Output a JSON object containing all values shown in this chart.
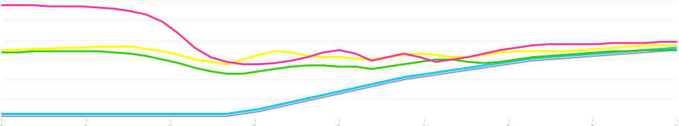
{
  "background_color": "#ffffff",
  "grid_color": "#e5e5e5",
  "series": {
    "pink": {
      "color": "#ff3399",
      "linewidth": 2.0,
      "values": [
        96,
        96,
        96,
        95,
        95,
        95,
        94,
        93,
        91,
        88,
        82,
        72,
        60,
        52,
        48,
        46,
        46,
        47,
        49,
        52,
        56,
        58,
        55,
        49,
        52,
        55,
        52,
        48,
        50,
        52,
        55,
        58,
        60,
        62,
        63,
        63,
        63,
        63,
        64,
        64,
        64,
        65,
        65
      ]
    },
    "yellow": {
      "color": "#ffff00",
      "linewidth": 2.2,
      "values": [
        58,
        58,
        59,
        59,
        60,
        60,
        61,
        61,
        61,
        59,
        57,
        54,
        50,
        48,
        46,
        50,
        54,
        57,
        56,
        53,
        52,
        52,
        51,
        50,
        52,
        54,
        55,
        54,
        52,
        52,
        54,
        56,
        57,
        57,
        57,
        57,
        58,
        59,
        60,
        61,
        62,
        62,
        62
      ]
    },
    "green": {
      "color": "#33cc00",
      "linewidth": 2.0,
      "values": [
        56,
        56,
        57,
        57,
        57,
        57,
        57,
        56,
        55,
        53,
        50,
        47,
        43,
        40,
        38,
        38,
        40,
        42,
        44,
        45,
        45,
        44,
        44,
        42,
        44,
        46,
        48,
        50,
        50,
        48,
        47,
        48,
        50,
        52,
        53,
        54,
        55,
        56,
        57,
        57,
        58,
        58,
        58
      ]
    },
    "blue": {
      "color": "#00ccff",
      "linewidth": 2.2,
      "values": [
        4,
        4,
        4,
        4,
        4,
        4,
        4,
        4,
        4,
        4,
        4,
        4,
        4,
        4,
        4,
        6,
        8,
        11,
        14,
        17,
        20,
        23,
        26,
        29,
        32,
        35,
        37,
        39,
        41,
        43,
        45,
        47,
        49,
        51,
        52,
        53,
        54,
        55,
        56,
        57,
        58,
        59,
        60
      ]
    },
    "gray": {
      "color": "#9999bb",
      "linewidth": 1.6,
      "values": [
        2,
        2,
        2,
        2,
        2,
        2,
        2,
        2,
        2,
        2,
        2,
        2,
        2,
        2,
        2,
        4,
        6,
        9,
        12,
        15,
        18,
        21,
        24,
        27,
        30,
        33,
        35,
        37,
        39,
        41,
        43,
        45,
        47,
        49,
        50,
        51,
        52,
        53,
        54,
        55,
        56,
        57,
        58
      ]
    }
  },
  "ylim": [
    0,
    100
  ],
  "xlim": [
    0,
    42
  ],
  "n_points": 43,
  "figsize": [
    9.75,
    1.82
  ],
  "dpi": 100,
  "grid_linewidth": 0.5,
  "grid_alpha": 0.7,
  "n_gridlines": 6
}
